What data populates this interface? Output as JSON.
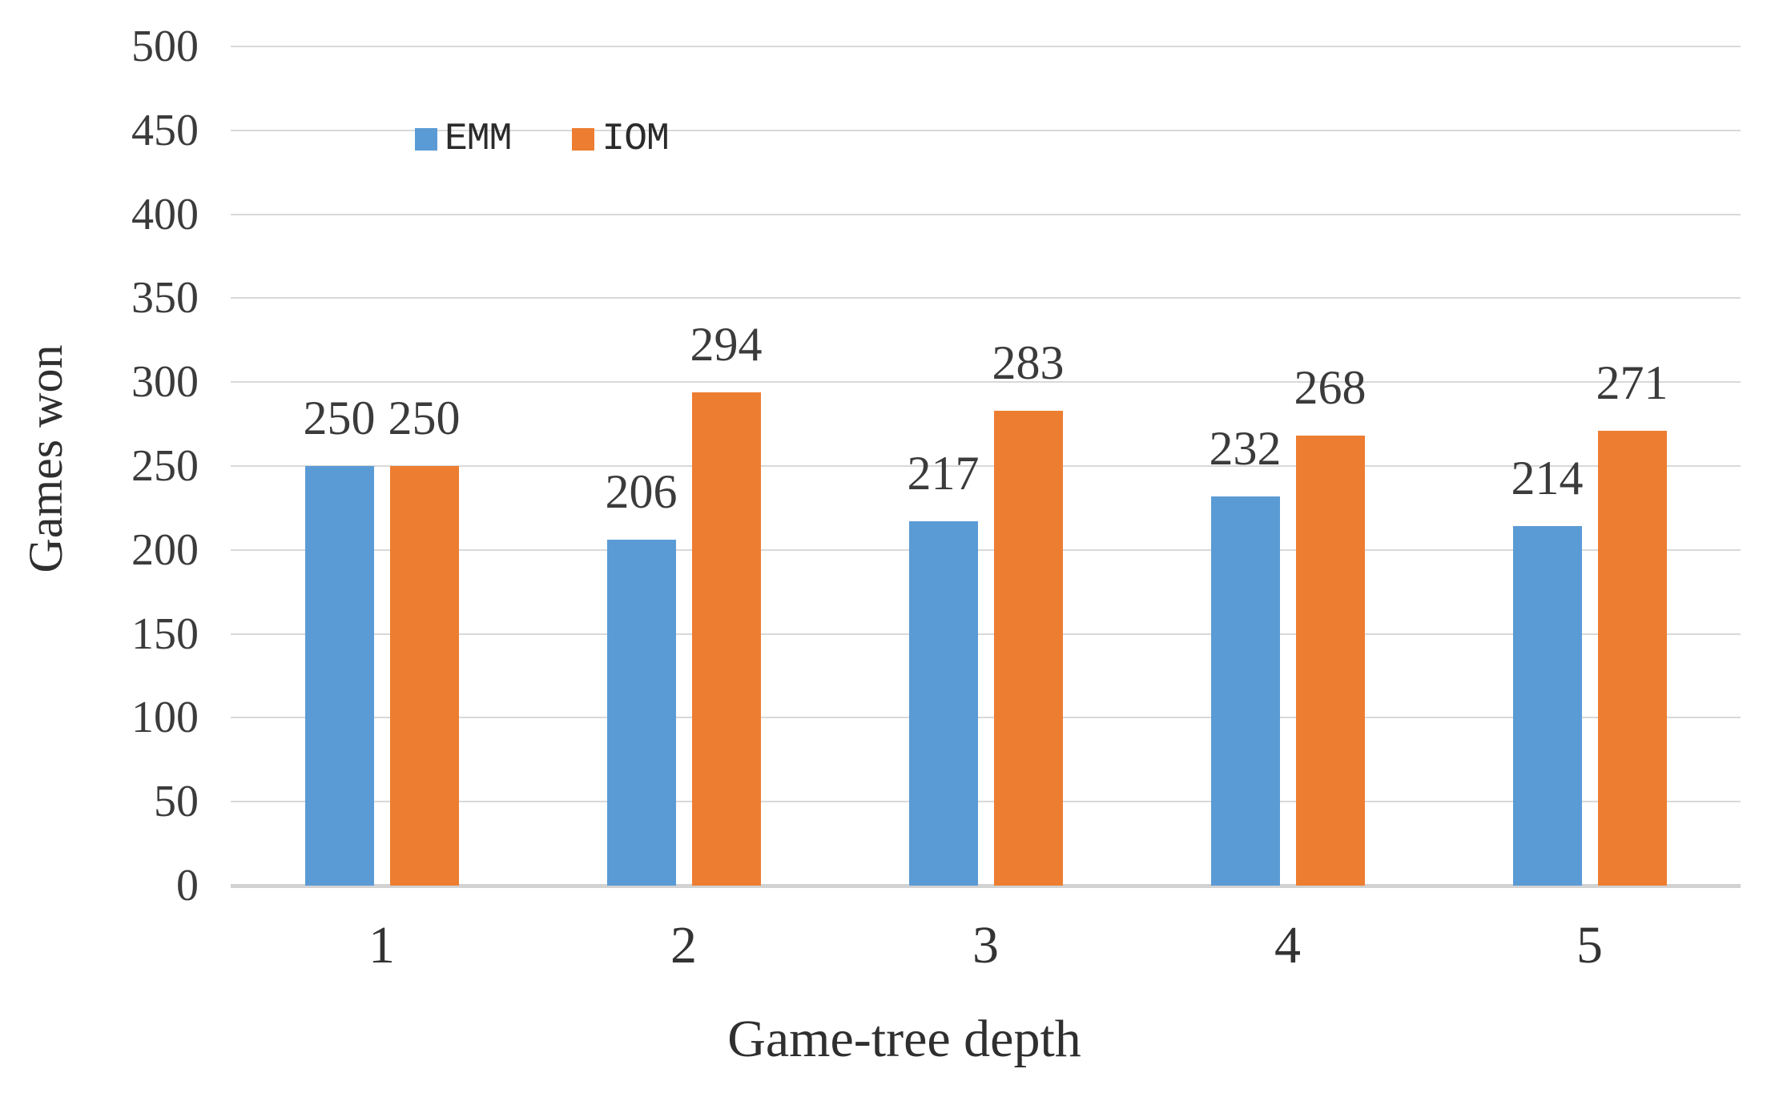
{
  "chart_data": {
    "type": "bar",
    "title": "",
    "xlabel": "Game-tree depth",
    "ylabel": "Games won",
    "categories": [
      "1",
      "2",
      "3",
      "4",
      "5"
    ],
    "series": [
      {
        "name": "EMM",
        "color": "#5B9BD5",
        "values": [
          250,
          206,
          217,
          232,
          214
        ]
      },
      {
        "name": "IOM",
        "color": "#ED7D31",
        "values": [
          250,
          294,
          283,
          268,
          271
        ]
      }
    ],
    "data_labels": {
      "EMM": [
        "250",
        "206",
        "217",
        "232",
        "214"
      ],
      "IOM": [
        "250",
        "294",
        "283",
        "268",
        "271"
      ]
    },
    "ylim": [
      0,
      500
    ],
    "ytick_step": 50,
    "yticks": [
      0,
      50,
      100,
      150,
      200,
      250,
      300,
      350,
      400,
      450,
      500
    ],
    "grid": true,
    "gridline_color": "#D9D9D9",
    "legend_position": "top-inside",
    "legend_marker": "square"
  }
}
